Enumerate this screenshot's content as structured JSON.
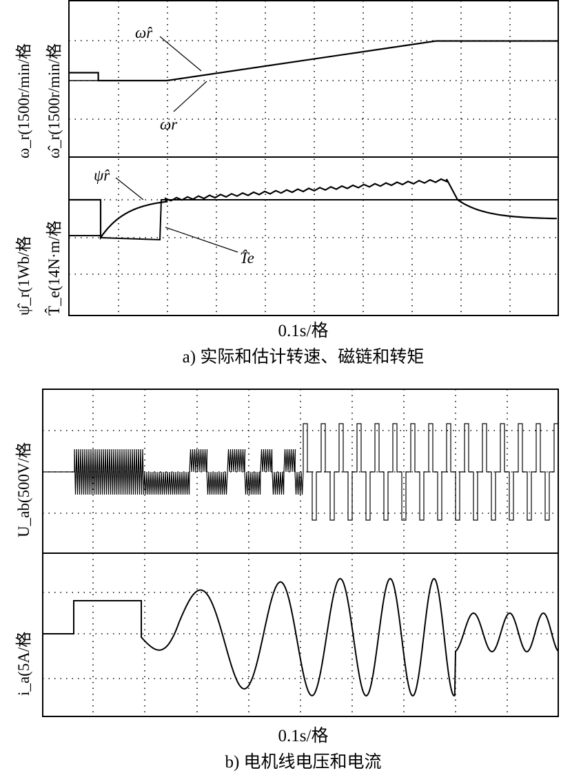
{
  "figure_a": {
    "caption": "a) 实际和估计转速、磁链和转矩",
    "time_axis_label": "0.1s/格",
    "top_panel_ylabel_1": "ω_r(1500r/min/格",
    "top_panel_ylabel_2": "ω̂_r(1500r/min/格",
    "bottom_panel_ylabel_1": "ψ̂_r(1Wb/格",
    "bottom_panel_ylabel_2": "T̂_e(14N·m/格",
    "annotations": {
      "omega_hat": "ω̂r",
      "omega": "ωr",
      "psi_hat": "ψ̂r",
      "te_hat": "T̂e"
    }
  },
  "figure_b": {
    "caption": "b) 电机线电压和电流",
    "time_axis_label": "0.1s/格",
    "top_panel_ylabel": "U_ab(500V/格",
    "bottom_panel_ylabel": "i_a(5A/格"
  },
  "chart_data": [
    {
      "type": "line",
      "panel": "a-top",
      "x_unit": "div (0.1s/div)",
      "y_unit": "div (1500r/min/div)",
      "xlim": [
        0,
        10
      ],
      "ylim": [
        -2,
        3.5
      ],
      "grid": true,
      "series": [
        {
          "name": "ω̂r",
          "x": [
            0,
            0.6,
            0.6,
            2.0,
            7.5,
            10
          ],
          "y": [
            0.2,
            0.2,
            0,
            0,
            1.0,
            1.0
          ]
        },
        {
          "name": "ωr",
          "x": [
            0,
            2.0,
            7.5,
            10
          ],
          "y": [
            0,
            0,
            1.0,
            1.0
          ]
        }
      ]
    },
    {
      "type": "line",
      "panel": "a-bottom",
      "x_unit": "div (0.1s/div)",
      "y_unit": "div (1Wb/div, 14N·m/div)",
      "xlim": [
        0,
        10
      ],
      "ylim": [
        -2.8,
        2.5
      ],
      "grid": true,
      "series": [
        {
          "name": "ψ̂r",
          "x": [
            0,
            0.6,
            0.6,
            1.0,
            1.4,
            1.85,
            7.7,
            8.0,
            8.5,
            10
          ],
          "y": [
            -1.2,
            -1.2,
            -1.3,
            -0.6,
            0.1,
            0,
            0.4,
            0.2,
            -0.3,
            -0.4
          ]
        },
        {
          "name": "T̂e",
          "x": [
            0,
            0.6,
            0.6,
            1.8,
            1.8,
            10
          ],
          "y": [
            0,
            0,
            -1.2,
            -1.3,
            0,
            0
          ]
        }
      ]
    },
    {
      "type": "line",
      "panel": "b-top",
      "x_unit": "div (0.1s/div)",
      "y_unit": "div (500V/div)",
      "xlim": [
        0,
        10
      ],
      "ylim": [
        -3.5,
        2
      ],
      "grid": true,
      "series": [
        {
          "name": "",
          "description_points": {
            "x": [
              0,
              0.6,
              1.9,
              4.7,
              10
            ],
            "peak": [
              0,
              1.1,
              1.1,
              1.0,
              1.8
            ]
          }
        }
      ]
    },
    {
      "type": "line",
      "panel": "b-bottom",
      "x_unit": "div (0.1s/div)",
      "y_unit": "div (5A/div)",
      "xlim": [
        0,
        10
      ],
      "ylim": [
        -2,
        3
      ],
      "grid": true,
      "series": [
        {
          "name": "",
          "x": [
            0,
            0.6,
            0.6,
            1.9,
            2.6,
            3.2,
            3.9,
            10
          ],
          "y": [
            0,
            0,
            0.75,
            0.75,
            -1.0,
            1.2,
            -1.0,
            -0.5
          ]
        }
      ]
    }
  ]
}
